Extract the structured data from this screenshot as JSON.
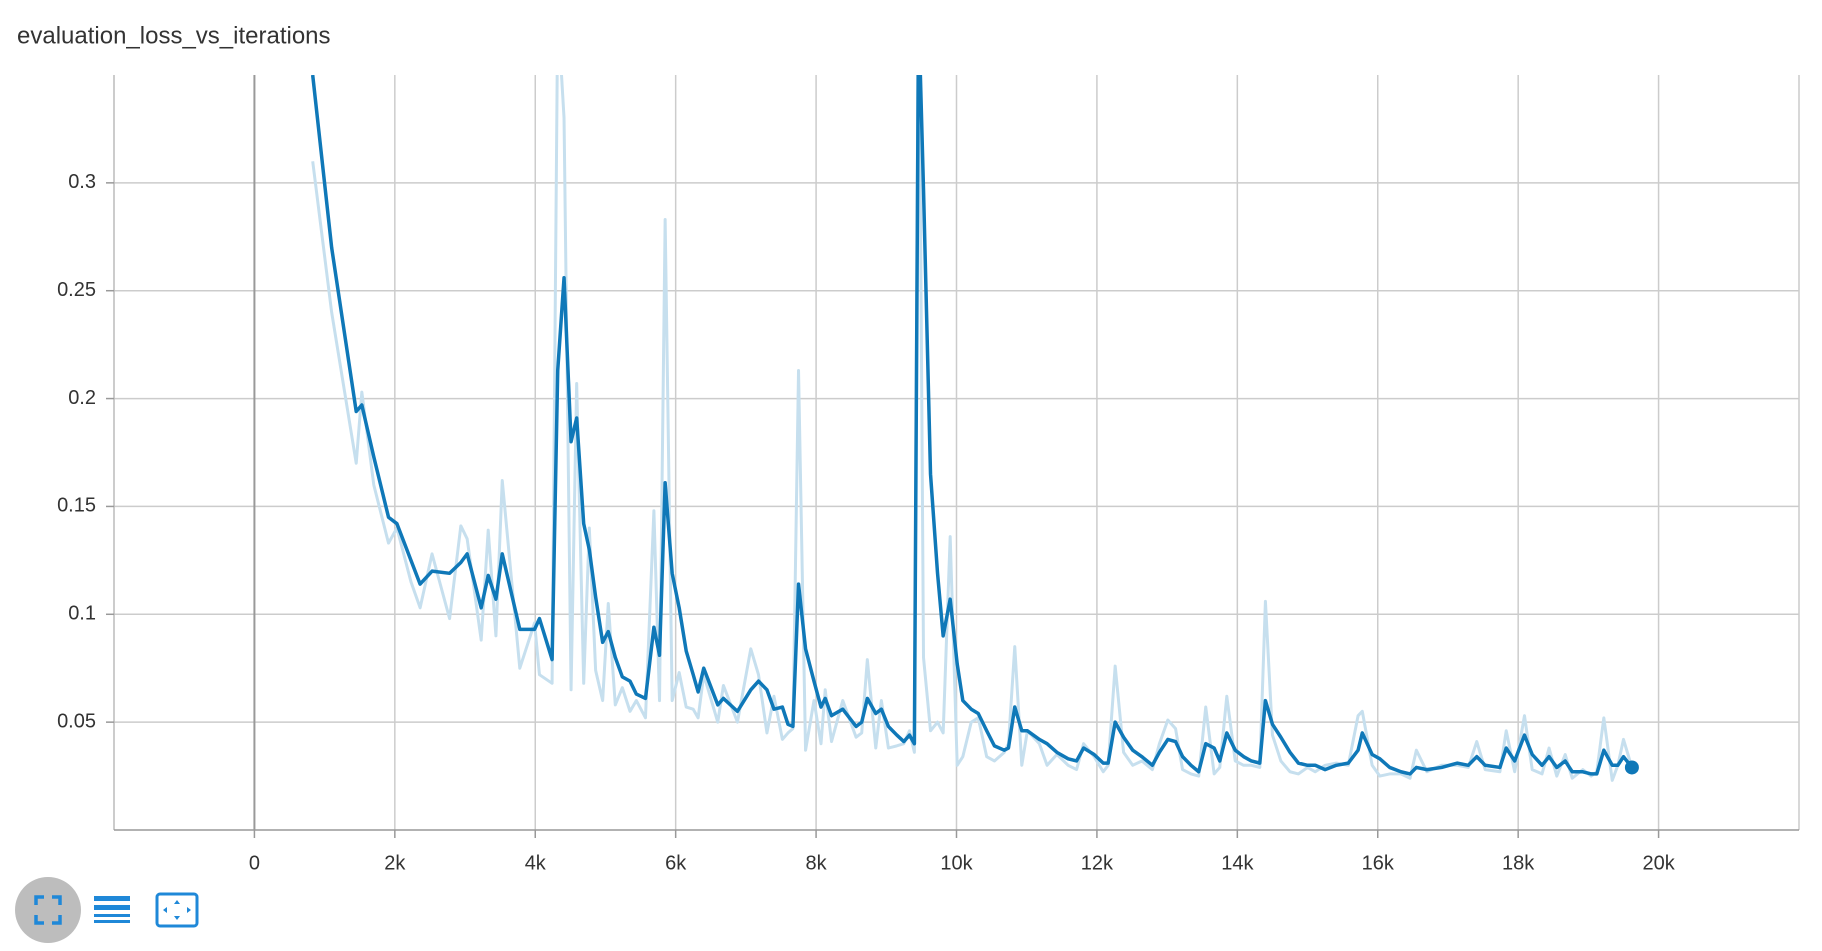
{
  "chart_data": {
    "type": "line",
    "title": "evaluation_loss_vs_iterations",
    "x": [
      830,
      1100,
      1450,
      1530,
      1700,
      1910,
      2030,
      2230,
      2360,
      2530,
      2780,
      2940,
      3030,
      3230,
      3330,
      3440,
      3530,
      3780,
      3990,
      4060,
      4240,
      4320,
      4410,
      4510,
      4590,
      4690,
      4770,
      4860,
      4960,
      5040,
      5140,
      5240,
      5350,
      5440,
      5570,
      5690,
      5770,
      5850,
      5950,
      6050,
      6150,
      6250,
      6320,
      6400,
      6600,
      6680,
      6880,
      7070,
      7180,
      7300,
      7400,
      7520,
      7600,
      7670,
      7750,
      7850,
      7970,
      8070,
      8130,
      8220,
      8380,
      8570,
      8650,
      8730,
      8850,
      8930,
      9030,
      9150,
      9250,
      9330,
      9400,
      9460,
      9530,
      9630,
      9730,
      9810,
      9910,
      10010,
      10090,
      10210,
      10310,
      10430,
      10540,
      10680,
      10740,
      10830,
      10930,
      11010,
      11180,
      11290,
      11430,
      11590,
      11710,
      11810,
      11960,
      12090,
      12160,
      12260,
      12380,
      12510,
      12640,
      12790,
      12890,
      13010,
      13120,
      13220,
      13340,
      13450,
      13550,
      13670,
      13750,
      13850,
      13970,
      14090,
      14200,
      14320,
      14400,
      14500,
      14620,
      14750,
      14870,
      15000,
      15110,
      15250,
      15410,
      15580,
      15720,
      15780,
      15920,
      16030,
      16170,
      16330,
      16460,
      16550,
      16700,
      16910,
      17130,
      17290,
      17410,
      17530,
      17740,
      17830,
      17950,
      18090,
      18200,
      18340,
      18440,
      18550,
      18670,
      18770,
      18920,
      19040,
      19120,
      19220,
      19340,
      19420,
      19500,
      19620
    ],
    "series": [
      {
        "color": "#0f78b8",
        "values": [
          0.35,
          0.27,
          0.194,
          0.197,
          0.173,
          0.145,
          0.142,
          0.125,
          0.114,
          0.12,
          0.119,
          0.124,
          0.128,
          0.103,
          0.118,
          0.107,
          0.128,
          0.093,
          0.093,
          0.098,
          0.079,
          0.213,
          0.256,
          0.18,
          0.191,
          0.142,
          0.13,
          0.108,
          0.087,
          0.092,
          0.08,
          0.071,
          0.069,
          0.063,
          0.061,
          0.094,
          0.081,
          0.161,
          0.119,
          0.103,
          0.083,
          0.072,
          0.064,
          0.075,
          0.058,
          0.061,
          0.055,
          0.065,
          0.069,
          0.065,
          0.056,
          0.057,
          0.049,
          0.048,
          0.114,
          0.084,
          0.069,
          0.057,
          0.061,
          0.053,
          0.056,
          0.048,
          0.05,
          0.061,
          0.054,
          0.056,
          0.048,
          0.044,
          0.041,
          0.044,
          0.04,
          0.38,
          0.297,
          0.165,
          0.119,
          0.09,
          0.107,
          0.077,
          0.06,
          0.056,
          0.054,
          0.046,
          0.039,
          0.037,
          0.038,
          0.057,
          0.046,
          0.046,
          0.042,
          0.04,
          0.036,
          0.033,
          0.032,
          0.038,
          0.035,
          0.031,
          0.031,
          0.05,
          0.043,
          0.037,
          0.034,
          0.03,
          0.036,
          0.042,
          0.041,
          0.034,
          0.03,
          0.027,
          0.04,
          0.038,
          0.032,
          0.045,
          0.037,
          0.034,
          0.032,
          0.031,
          0.06,
          0.049,
          0.043,
          0.036,
          0.031,
          0.03,
          0.03,
          0.028,
          0.03,
          0.031,
          0.037,
          0.045,
          0.035,
          0.033,
          0.029,
          0.027,
          0.026,
          0.029,
          0.028,
          0.029,
          0.031,
          0.03,
          0.034,
          0.03,
          0.029,
          0.038,
          0.032,
          0.044,
          0.035,
          0.03,
          0.034,
          0.029,
          0.032,
          0.027,
          0.027,
          0.026,
          0.026,
          0.037,
          0.03,
          0.03,
          0.034,
          0.029
        ]
      },
      {
        "color": "#c6dfee",
        "values": [
          0.31,
          0.24,
          0.17,
          0.203,
          0.16,
          0.133,
          0.14,
          0.115,
          0.103,
          0.128,
          0.098,
          0.141,
          0.135,
          0.088,
          0.139,
          0.09,
          0.162,
          0.075,
          0.096,
          0.072,
          0.068,
          0.38,
          0.33,
          0.065,
          0.207,
          0.068,
          0.14,
          0.074,
          0.06,
          0.105,
          0.058,
          0.066,
          0.055,
          0.06,
          0.052,
          0.148,
          0.06,
          0.283,
          0.06,
          0.073,
          0.057,
          0.056,
          0.052,
          0.072,
          0.05,
          0.067,
          0.05,
          0.084,
          0.072,
          0.045,
          0.062,
          0.042,
          0.045,
          0.047,
          0.213,
          0.037,
          0.06,
          0.04,
          0.065,
          0.041,
          0.06,
          0.043,
          0.045,
          0.079,
          0.038,
          0.06,
          0.038,
          0.039,
          0.04,
          0.046,
          0.036,
          0.42,
          0.08,
          0.046,
          0.05,
          0.045,
          0.136,
          0.03,
          0.034,
          0.05,
          0.052,
          0.034,
          0.032,
          0.036,
          0.04,
          0.085,
          0.03,
          0.046,
          0.04,
          0.03,
          0.035,
          0.03,
          0.028,
          0.04,
          0.034,
          0.027,
          0.03,
          0.076,
          0.036,
          0.03,
          0.032,
          0.028,
          0.04,
          0.051,
          0.047,
          0.028,
          0.026,
          0.025,
          0.057,
          0.026,
          0.029,
          0.062,
          0.032,
          0.03,
          0.03,
          0.029,
          0.106,
          0.044,
          0.032,
          0.027,
          0.026,
          0.029,
          0.027,
          0.03,
          0.031,
          0.03,
          0.053,
          0.055,
          0.03,
          0.025,
          0.026,
          0.026,
          0.024,
          0.037,
          0.027,
          0.03,
          0.03,
          0.029,
          0.041,
          0.028,
          0.027,
          0.046,
          0.027,
          0.053,
          0.028,
          0.026,
          0.038,
          0.025,
          0.035,
          0.024,
          0.028,
          0.025,
          0.027,
          0.052,
          0.023,
          0.03,
          0.042,
          0.029
        ]
      }
    ],
    "xlim": [
      -2000,
      22000
    ],
    "xticks": [
      0,
      {
        "value": 2000,
        "label": "2k"
      },
      {
        "value": 4000,
        "label": "4k"
      },
      {
        "value": 6000,
        "label": "6k"
      },
      {
        "value": 8000,
        "label": "8k"
      },
      {
        "value": 10000,
        "label": "10k"
      },
      {
        "value": 12000,
        "label": "12k"
      },
      {
        "value": 14000,
        "label": "14k"
      },
      {
        "value": 16000,
        "label": "16k"
      },
      {
        "value": 18000,
        "label": "18k"
      },
      {
        "value": 20000,
        "label": "20k"
      }
    ],
    "ylim": [
      0,
      0.35
    ],
    "yticks": [
      0.05,
      0.1,
      0.15,
      0.2,
      0.25,
      0.3
    ],
    "grid": true
  }
}
